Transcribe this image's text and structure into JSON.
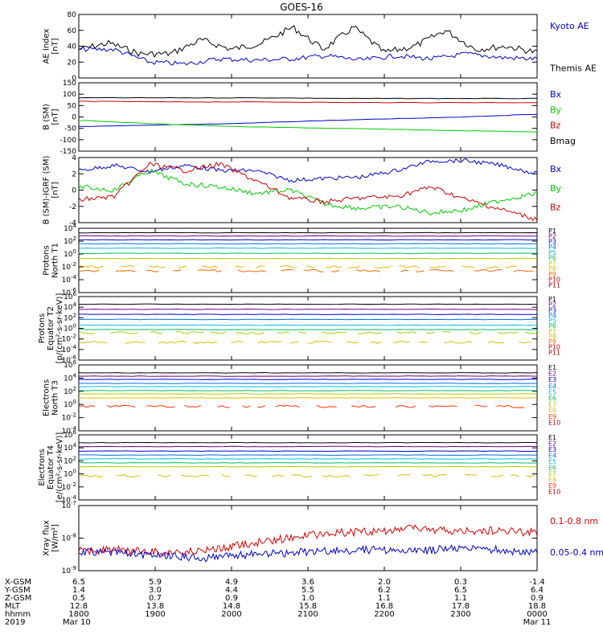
{
  "title": "GOES-16",
  "panels": [
    {
      "id": "ae",
      "ylabel": [
        "AE Index",
        "[nT]"
      ],
      "ticks": [
        "80",
        "60",
        "40",
        "20",
        "0"
      ],
      "legend": [
        {
          "text": "Kyoto AE",
          "color": "#0000cc"
        },
        {
          "text": "Themis AE",
          "color": "#000000"
        }
      ]
    },
    {
      "id": "b",
      "ylabel": [
        "B (SM)",
        "[nT]"
      ],
      "ticks": [
        "150",
        "100",
        "50",
        "0",
        "-50",
        "-100",
        "-150"
      ],
      "legend": [
        {
          "text": "Bx",
          "color": "#0000cc"
        },
        {
          "text": "By",
          "color": "#00cc00"
        },
        {
          "text": "Bz",
          "color": "#cc0000"
        },
        {
          "text": "Bmag",
          "color": "#000000"
        }
      ]
    },
    {
      "id": "db",
      "ylabel": [
        "B (SM)-IGRF (SM)",
        "[nT]"
      ],
      "ticks": [
        "4",
        "2",
        "0",
        "-2",
        "-4"
      ],
      "legend": [
        {
          "text": "Bx",
          "color": "#0000cc"
        },
        {
          "text": "By",
          "color": "#00cc00"
        },
        {
          "text": "Bz",
          "color": "#cc0000"
        }
      ]
    },
    {
      "id": "p1",
      "ylabel": [
        "Protons",
        "North T1"
      ],
      "ticks": [
        "10^4",
        "10^2",
        "10^0",
        "10^-2",
        "10^-4",
        "10^-6"
      ],
      "legend": [
        {
          "text": "P1",
          "color": "#000000"
        },
        {
          "text": "P2",
          "color": "#6a0080"
        },
        {
          "text": "P3",
          "color": "#0000cc"
        },
        {
          "text": "P4",
          "color": "#0070dd"
        },
        {
          "text": "P5",
          "color": "#00bbdd"
        },
        {
          "text": "P6",
          "color": "#00bb66"
        },
        {
          "text": "P7",
          "color": "#aacc00"
        },
        {
          "text": "P8",
          "color": "#ddbb00"
        },
        {
          "text": "P9",
          "color": "#ff6600"
        },
        {
          "text": "P10",
          "color": "#dd0000"
        },
        {
          "text": "P11",
          "color": "#aa0000"
        }
      ]
    },
    {
      "id": "p2",
      "ylabel": [
        "Protons",
        "Equator T2",
        "[p/(cm²-s-sr-keV)]"
      ],
      "ticks": [
        "10^6",
        "10^4",
        "10^2",
        "10^0",
        "10^-2",
        "10^-4",
        "10^-6"
      ],
      "legend": [
        {
          "text": "P1",
          "color": "#000000"
        },
        {
          "text": "P2",
          "color": "#6a0080"
        },
        {
          "text": "P3",
          "color": "#0000cc"
        },
        {
          "text": "P4",
          "color": "#0070dd"
        },
        {
          "text": "P5",
          "color": "#00bbdd"
        },
        {
          "text": "P6",
          "color": "#00bb66"
        },
        {
          "text": "P7",
          "color": "#aacc00"
        },
        {
          "text": "P8",
          "color": "#ddbb00"
        },
        {
          "text": "P9",
          "color": "#ff6600"
        },
        {
          "text": "P10",
          "color": "#dd0000"
        },
        {
          "text": "P11",
          "color": "#aa0000"
        }
      ]
    },
    {
      "id": "e1",
      "ylabel": [
        "Electrons",
        "North T3"
      ],
      "ticks": [
        "10^6",
        "10^4",
        "10^2",
        "10^0",
        "10^-2",
        "10^-4"
      ],
      "legend": [
        {
          "text": "E1",
          "color": "#000000"
        },
        {
          "text": "E2",
          "color": "#6a0080"
        },
        {
          "text": "E3",
          "color": "#0000cc"
        },
        {
          "text": "E4",
          "color": "#0070dd"
        },
        {
          "text": "E5",
          "color": "#00bbdd"
        },
        {
          "text": "E6",
          "color": "#00bb66"
        },
        {
          "text": "E7",
          "color": "#aacc00"
        },
        {
          "text": "E8",
          "color": "#ddbb00"
        },
        {
          "text": "E9",
          "color": "#ff3300"
        },
        {
          "text": "E10",
          "color": "#aa0000"
        }
      ]
    },
    {
      "id": "e2",
      "ylabel": [
        "Electrons",
        "Equator T4",
        "[e/(cm²-s-sr-keV)]"
      ],
      "ticks": [
        "10^6",
        "10^4",
        "10^2",
        "10^0",
        "10^-2",
        "10^-4"
      ],
      "legend": [
        {
          "text": "E1",
          "color": "#000000"
        },
        {
          "text": "E2",
          "color": "#6a0080"
        },
        {
          "text": "E3",
          "color": "#0000cc"
        },
        {
          "text": "E4",
          "color": "#0070dd"
        },
        {
          "text": "E5",
          "color": "#00bbdd"
        },
        {
          "text": "E6",
          "color": "#00bb66"
        },
        {
          "text": "E7",
          "color": "#aacc00"
        },
        {
          "text": "E8",
          "color": "#ddbb00"
        },
        {
          "text": "E9",
          "color": "#ff3300"
        },
        {
          "text": "E10",
          "color": "#aa0000"
        }
      ]
    },
    {
      "id": "xr",
      "ylabel": [
        "Xray flux",
        "[W/m²]"
      ],
      "ticks": [
        "10^-7",
        "10^-8",
        "10^-9"
      ],
      "legend": [
        {
          "text": "0.1-0.8 nm",
          "color": "#dd0000"
        },
        {
          "text": "0.05-0.4 nm",
          "color": "#0000cc"
        }
      ]
    }
  ],
  "footer": {
    "labels": [
      "X-GSM",
      "Y-GSM",
      "Z-GSM",
      "MLT",
      "hhmm",
      "2019"
    ],
    "columns": [
      [
        "6.5",
        "1.4",
        "0.5",
        "12.8",
        "1800",
        "Mar 10"
      ],
      [
        "5.9",
        "3.0",
        "0.7",
        "13.8",
        "1900",
        ""
      ],
      [
        "4.9",
        "4.4",
        "0.9",
        "14.8",
        "2000",
        ""
      ],
      [
        "3.6",
        "5.5",
        "1.0",
        "15.8",
        "2100",
        ""
      ],
      [
        "2.0",
        "6.2",
        "1.1",
        "16.8",
        "2200",
        ""
      ],
      [
        "0.3",
        "6.5",
        "1.1",
        "17.8",
        "2300",
        ""
      ],
      [
        "-1.4",
        "6.4",
        "0.9",
        "18.8",
        "0000",
        "Mar 11"
      ]
    ]
  },
  "chart_data": [
    {
      "type": "line",
      "title": "AE Index",
      "ylabel": "AE Index [nT]",
      "ylim": [
        0,
        80
      ],
      "x": [
        "1800",
        "1900",
        "2000",
        "2100",
        "2200",
        "2300",
        "0000"
      ],
      "series": [
        {
          "name": "Kyoto AE",
          "values": [
            38,
            22,
            26,
            28,
            24,
            26,
            24
          ]
        },
        {
          "name": "Themis AE",
          "values": [
            38,
            36,
            40,
            52,
            45,
            56,
            40
          ]
        }
      ]
    },
    {
      "type": "line",
      "title": "B (SM)",
      "ylabel": "B (SM) [nT]",
      "ylim": [
        -150,
        150
      ],
      "x": [
        "1800",
        "1900",
        "2000",
        "2100",
        "2200",
        "2300",
        "0000"
      ],
      "series": [
        {
          "name": "Bx",
          "values": [
            -45,
            -38,
            -30,
            -20,
            -10,
            0,
            10
          ]
        },
        {
          "name": "By",
          "values": [
            -15,
            -22,
            -30,
            -35,
            -38,
            -40,
            -42
          ]
        },
        {
          "name": "Bz",
          "values": [
            92,
            91,
            91,
            90,
            90,
            90,
            90
          ]
        },
        {
          "name": "Bmag",
          "values": [
            100,
            100,
            99,
            99,
            99,
            99,
            98
          ]
        }
      ]
    },
    {
      "type": "line",
      "title": "B (SM)-IGRF (SM)",
      "ylabel": "B (SM)-IGRF (SM) [nT]",
      "ylim": [
        -4,
        4
      ],
      "x": [
        "1800",
        "1900",
        "2000",
        "2100",
        "2200",
        "2300",
        "0000"
      ],
      "series": [
        {
          "name": "Bx",
          "values": [
            2.5,
            3,
            3,
            2,
            1.5,
            3.8,
            2
          ]
        },
        {
          "name": "By",
          "values": [
            0.5,
            2,
            0,
            -1,
            -2.5,
            -2,
            0
          ]
        },
        {
          "name": "Bz",
          "values": [
            -1,
            3.5,
            3,
            -2,
            -1,
            1,
            -3.5
          ]
        }
      ]
    }
  ]
}
